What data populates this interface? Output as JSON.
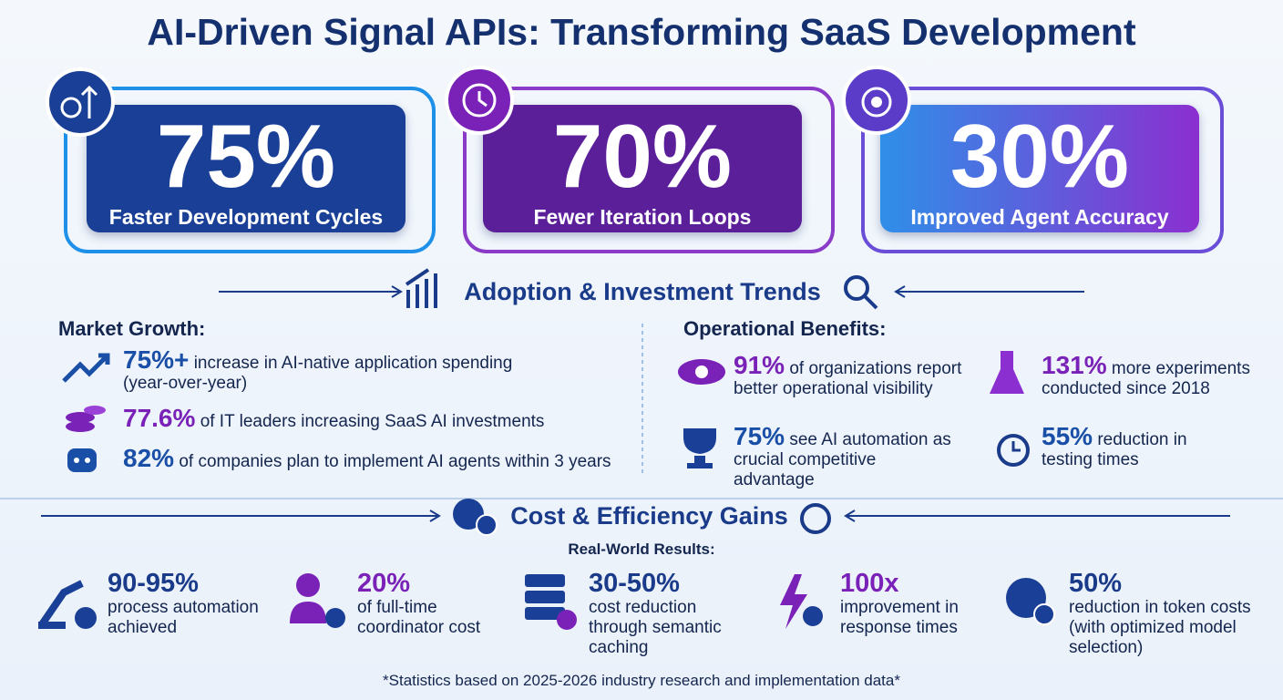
{
  "title": "AI-Driven Signal APIs: Transforming SaaS Development",
  "hero": [
    {
      "stat": "75%",
      "label": "Faster Development Cycles"
    },
    {
      "stat": "70%",
      "label": "Fewer Iteration Loops"
    },
    {
      "stat": "30%",
      "label": "Improved Agent Accuracy"
    }
  ],
  "adoption": {
    "heading": "Adoption & Investment Trends",
    "market": {
      "heading": "Market Growth:",
      "items": [
        {
          "stat": "75%+",
          "text": "increase in AI-native application spending (year-over-year)"
        },
        {
          "stat": "77.6%",
          "text": "of IT leaders increasing SaaS AI investments"
        },
        {
          "stat": "82%",
          "text": "of companies plan to implement AI agents within 3 years"
        }
      ]
    },
    "operational": {
      "heading": "Operational Benefits:",
      "items": [
        {
          "stat": "91%",
          "text": "of organizations report better operational visibility"
        },
        {
          "stat": "131%",
          "text": "more experiments conducted since 2018"
        },
        {
          "stat": "75%",
          "text": "see AI automation as crucial competitive advantage"
        },
        {
          "stat": "55%",
          "text": "reduction in testing times"
        }
      ]
    }
  },
  "cost": {
    "heading": "Cost & Efficiency Gains",
    "subheading": "Real-World Results:",
    "items": [
      {
        "stat": "90-95%",
        "text": "process automation achieved"
      },
      {
        "stat": "20%",
        "text": "of full-time coordinator cost"
      },
      {
        "stat": "30-50%",
        "text": "cost reduction through semantic caching"
      },
      {
        "stat": "100x",
        "text": "improvement in response times"
      },
      {
        "stat": "50%",
        "text": "reduction in token costs (with optimized model selection)"
      }
    ]
  },
  "footnote": "*Statistics based on 2025-2026 industry research and implementation data*"
}
